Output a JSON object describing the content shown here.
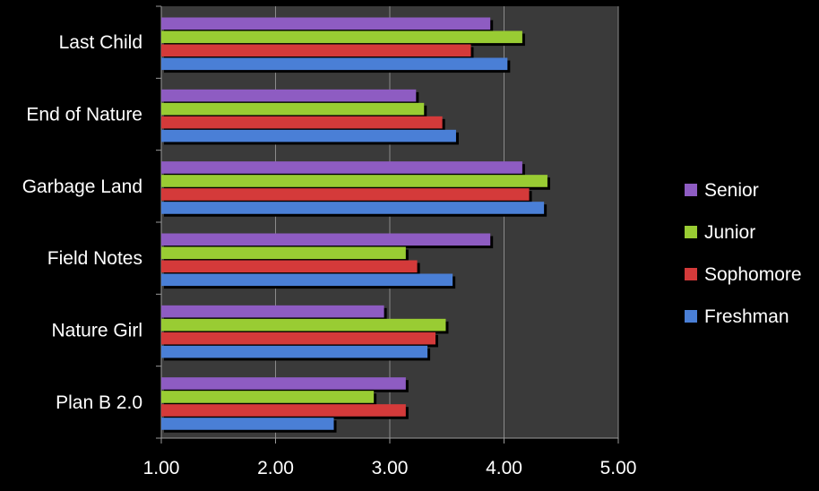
{
  "chart_data": {
    "type": "bar",
    "orientation": "horizontal",
    "categories": [
      "Last Child",
      "End of Nature",
      "Garbage Land",
      "Field Notes",
      "Nature Girl",
      "Plan B 2.0"
    ],
    "series": [
      {
        "name": "Freshman",
        "color": "#4a7fd6",
        "values": [
          4.03,
          3.58,
          4.35,
          3.55,
          3.33,
          2.51
        ]
      },
      {
        "name": "Sophomore",
        "color": "#d43a3a",
        "values": [
          3.71,
          3.46,
          4.22,
          3.24,
          3.4,
          3.14
        ]
      },
      {
        "name": "Junior",
        "color": "#99cc33",
        "values": [
          4.16,
          3.3,
          4.38,
          3.14,
          3.49,
          2.86
        ]
      },
      {
        "name": "Senior",
        "color": "#8e5cc2",
        "values": [
          3.88,
          3.23,
          4.16,
          3.88,
          2.95,
          3.14
        ]
      }
    ],
    "xlim": [
      1.0,
      5.0
    ],
    "xticks": [
      "1.00",
      "2.00",
      "3.00",
      "4.00",
      "5.00"
    ],
    "legend_order": [
      "Senior",
      "Junior",
      "Sophomore",
      "Freshman"
    ],
    "legend_position": "right",
    "grid": true,
    "plot_background": "#3a3a3a"
  }
}
